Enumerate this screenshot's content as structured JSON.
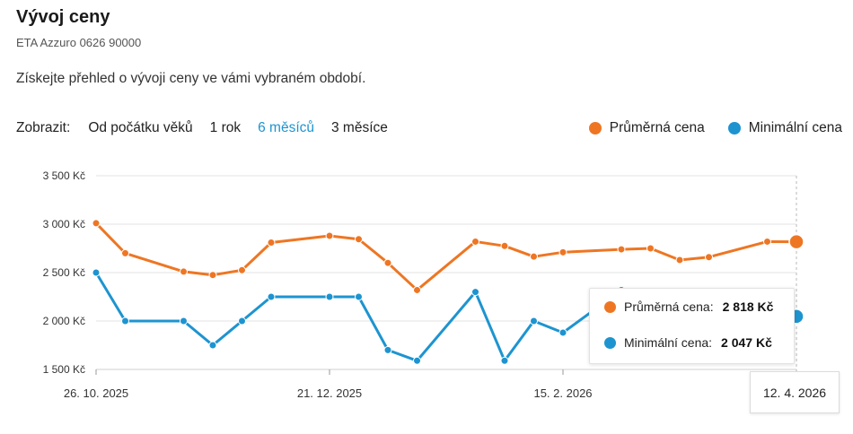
{
  "header": {
    "title": "Vývoj ceny",
    "product": "ETA Azzuro 0626 90000",
    "description": "Získejte přehled o vývoji ceny ve vámi vybraném období."
  },
  "filters": {
    "label": "Zobrazit:",
    "options": [
      "Od počátku věků",
      "1 rok",
      "6 měsíců",
      "3 měsíce"
    ],
    "active": "6 měsíců"
  },
  "legend": [
    {
      "name": "Průměrná cena",
      "color": "#ee7623"
    },
    {
      "name": "Minimální cena",
      "color": "#1d94d0"
    }
  ],
  "tooltip": {
    "rows": [
      {
        "label": "Průměrná cena:",
        "value": "2 818 Kč",
        "color": "#ee7623"
      },
      {
        "label": "Minimální cena:",
        "value": "2 047 Kč",
        "color": "#1d94d0"
      }
    ],
    "date": "12. 4. 2026"
  },
  "chart_data": {
    "type": "line",
    "title": "",
    "xlabel": "",
    "ylabel": "",
    "ylim": [
      1500,
      3500
    ],
    "yticks": [
      1500,
      2000,
      2500,
      3000,
      3500
    ],
    "ytick_labels": [
      "1 500 Kč",
      "2 000 Kč",
      "2 500 Kč",
      "3 000 Kč",
      "3 500 Kč"
    ],
    "xlim": [
      "2025-10-26",
      "2026-04-12"
    ],
    "xticks": [
      "2025-10-26",
      "2025-12-21",
      "2026-02-15",
      "2026-04-12"
    ],
    "xtick_labels": [
      "26. 10. 2025",
      "21. 12. 2025",
      "15. 2. 2026",
      "12. 4. 2026"
    ],
    "grid": true,
    "legend_position": "top-right",
    "series": [
      {
        "name": "Průměrná cena",
        "color": "#ee7623",
        "x": [
          "2025-10-26",
          "2025-11-02",
          "2025-11-16",
          "2025-11-23",
          "2025-11-30",
          "2025-12-07",
          "2025-12-21",
          "2025-12-28",
          "2026-01-04",
          "2026-01-11",
          "2026-01-25",
          "2026-02-01",
          "2026-02-08",
          "2026-02-15",
          "2026-03-01",
          "2026-03-08",
          "2026-03-15",
          "2026-03-22",
          "2026-04-05",
          "2026-04-12"
        ],
        "values": [
          3010,
          2700,
          2510,
          2475,
          2525,
          2810,
          2880,
          2845,
          2600,
          2320,
          2820,
          2775,
          2665,
          2710,
          2740,
          2750,
          2630,
          2660,
          2820,
          2818
        ]
      },
      {
        "name": "Minimální cena",
        "color": "#1d94d0",
        "x": [
          "2025-10-26",
          "2025-11-02",
          "2025-11-16",
          "2025-11-23",
          "2025-11-30",
          "2025-12-07",
          "2025-12-21",
          "2025-12-28",
          "2026-01-04",
          "2026-01-11",
          "2026-01-25",
          "2026-02-01",
          "2026-02-08",
          "2026-02-15",
          "2026-03-01",
          "2026-04-12"
        ],
        "values": [
          2500,
          2000,
          2000,
          1750,
          2000,
          2250,
          2250,
          2250,
          1700,
          1590,
          2300,
          1590,
          2000,
          1880,
          2320,
          2047
        ]
      }
    ]
  }
}
